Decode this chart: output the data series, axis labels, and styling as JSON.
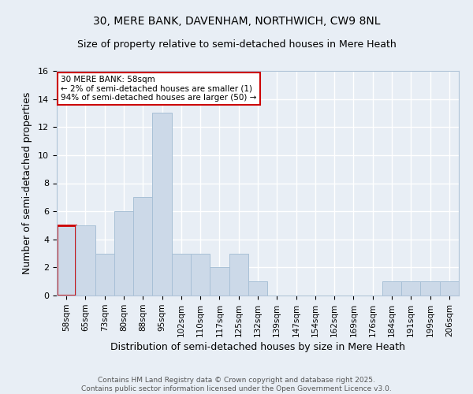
{
  "title1": "30, MERE BANK, DAVENHAM, NORTHWICH, CW9 8NL",
  "title2": "Size of property relative to semi-detached houses in Mere Heath",
  "xlabel": "Distribution of semi-detached houses by size in Mere Heath",
  "ylabel": "Number of semi-detached properties",
  "categories": [
    "58sqm",
    "65sqm",
    "73sqm",
    "80sqm",
    "88sqm",
    "95sqm",
    "102sqm",
    "110sqm",
    "117sqm",
    "125sqm",
    "132sqm",
    "139sqm",
    "147sqm",
    "154sqm",
    "162sqm",
    "169sqm",
    "176sqm",
    "184sqm",
    "191sqm",
    "199sqm",
    "206sqm"
  ],
  "values": [
    5,
    5,
    3,
    6,
    7,
    13,
    3,
    3,
    2,
    3,
    1,
    0,
    0,
    0,
    0,
    0,
    0,
    1,
    1,
    1,
    1
  ],
  "highlight_index": 0,
  "bar_color": "#ccd9e8",
  "bar_edge_color": "#a8c0d6",
  "highlight_bar_edge_color": "#cc0000",
  "annotation_text": "30 MERE BANK: 58sqm\n← 2% of semi-detached houses are smaller (1)\n94% of semi-detached houses are larger (50) →",
  "annotation_box_color": "#ffffff",
  "annotation_border_color": "#cc0000",
  "footnote": "Contains HM Land Registry data © Crown copyright and database right 2025.\nContains public sector information licensed under the Open Government Licence v3.0.",
  "ylim": [
    0,
    16
  ],
  "yticks": [
    0,
    2,
    4,
    6,
    8,
    10,
    12,
    14,
    16
  ],
  "bg_color": "#e8eef5",
  "grid_color": "#ffffff",
  "title_fontsize": 10,
  "subtitle_fontsize": 9,
  "tick_fontsize": 7.5,
  "label_fontsize": 9,
  "footnote_fontsize": 6.5
}
